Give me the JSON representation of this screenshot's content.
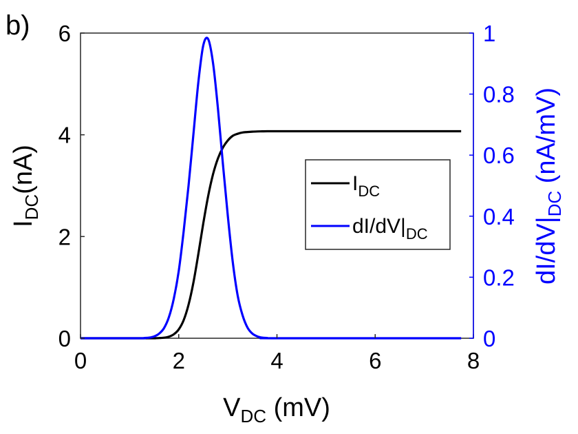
{
  "panel_label": "b)",
  "colors": {
    "left_axis": "#000000",
    "right_axis": "#0000ff",
    "series_1": "#000000",
    "series_2": "#0000ff"
  },
  "chart_data": {
    "type": "line",
    "xlabel": {
      "main": "V",
      "sub": "DC",
      "rest": " (mV)"
    },
    "ylabel_left": {
      "main": "I",
      "sub": "DC",
      "rest": "(nA)"
    },
    "ylabel_right": {
      "main": "dI/dV|",
      "sub": "DC",
      "rest": " (nA/mV)"
    },
    "xlim": [
      0,
      8
    ],
    "ylim_left": [
      0,
      6
    ],
    "ylim_right": [
      0,
      1
    ],
    "xticks": [
      "0",
      "2",
      "4",
      "6",
      "8"
    ],
    "yticks_left": [
      "0",
      "2",
      "4",
      "6"
    ],
    "yticks_right": [
      "0",
      "0.2",
      "0.4",
      "0.6",
      "0.8",
      "1"
    ],
    "grid": false,
    "legend_position": "center-right",
    "series": [
      {
        "name": {
          "main": "I",
          "sub": "DC"
        },
        "axis": "left",
        "x": [
          0,
          1.4,
          1.5,
          1.6,
          1.7,
          1.8,
          1.9,
          2.0,
          2.1,
          2.2,
          2.3,
          2.4,
          2.5,
          2.6,
          2.7,
          2.8,
          2.9,
          3.0,
          3.1,
          3.2,
          3.3,
          3.4,
          3.5,
          3.6,
          3.7,
          3.8,
          4.0,
          4.5,
          7.75
        ],
        "y": [
          0,
          0,
          0.001,
          0.004,
          0.011,
          0.031,
          0.078,
          0.174,
          0.355,
          0.66,
          1.1,
          1.66,
          2.26,
          2.8,
          3.23,
          3.54,
          3.75,
          3.89,
          3.98,
          4.02,
          4.045,
          4.055,
          4.062,
          4.066,
          4.068,
          4.07,
          4.07,
          4.07,
          4.07
        ]
      },
      {
        "name": {
          "main": "dI/dV|",
          "sub": "DC"
        },
        "axis": "right",
        "x": [
          0,
          1.2,
          1.3,
          1.4,
          1.5,
          1.6,
          1.7,
          1.8,
          1.9,
          2.0,
          2.1,
          2.2,
          2.3,
          2.4,
          2.5,
          2.6,
          2.7,
          2.8,
          2.9,
          3.0,
          3.1,
          3.2,
          3.3,
          3.4,
          3.5,
          3.6,
          3.7,
          3.8,
          4.0,
          7.75
        ],
        "y": [
          0,
          0,
          0.001,
          0.002,
          0.006,
          0.015,
          0.033,
          0.069,
          0.13,
          0.22,
          0.35,
          0.5,
          0.67,
          0.84,
          0.96,
          0.98,
          0.9,
          0.75,
          0.57,
          0.4,
          0.25,
          0.14,
          0.075,
          0.035,
          0.015,
          0.006,
          0.002,
          0.001,
          0,
          0
        ]
      }
    ]
  }
}
